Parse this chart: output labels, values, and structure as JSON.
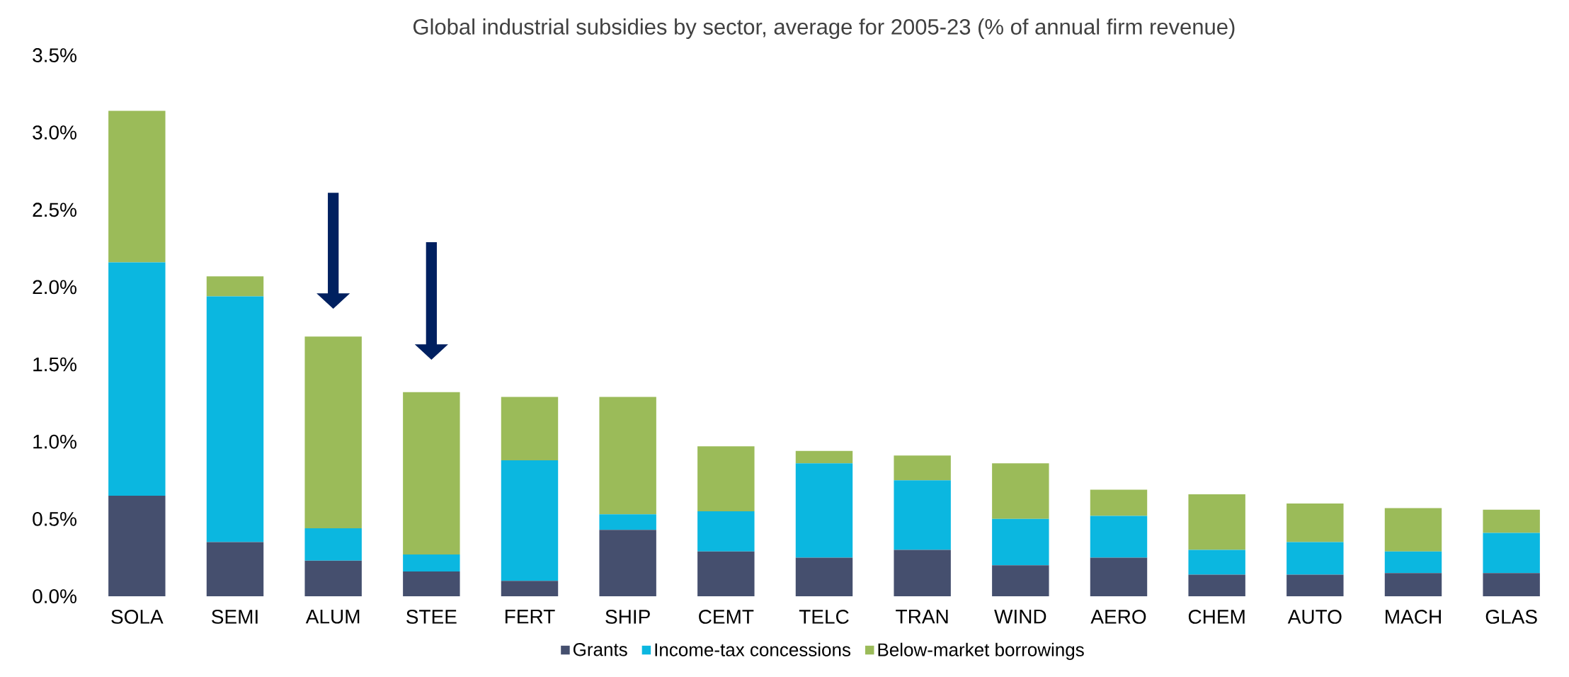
{
  "chart_data": {
    "type": "bar",
    "stacked": true,
    "title": "Global industrial subsidies by sector, average for 2005-23 (% of annual firm revenue)",
    "categories": [
      "SOLA",
      "SEMI",
      "ALUM",
      "STEE",
      "FERT",
      "SHIP",
      "CEMT",
      "TELC",
      "TRAN",
      "WIND",
      "AERO",
      "CHEM",
      "AUTO",
      "MACH",
      "GLAS"
    ],
    "series": [
      {
        "name": "Grants",
        "color": "#454f6e",
        "values": [
          0.65,
          0.35,
          0.23,
          0.16,
          0.1,
          0.43,
          0.29,
          0.25,
          0.3,
          0.2,
          0.25,
          0.14,
          0.14,
          0.15,
          0.15
        ]
      },
      {
        "name": "Income-tax concessions",
        "color": "#0bb7e0",
        "values": [
          1.51,
          1.59,
          0.21,
          0.11,
          0.78,
          0.1,
          0.26,
          0.61,
          0.45,
          0.3,
          0.27,
          0.16,
          0.21,
          0.14,
          0.26
        ]
      },
      {
        "name": "Below-market borrowings",
        "color": "#9bbb59",
        "values": [
          0.98,
          0.13,
          1.24,
          1.05,
          0.41,
          0.76,
          0.42,
          0.08,
          0.16,
          0.36,
          0.17,
          0.36,
          0.25,
          0.28,
          0.15
        ]
      }
    ],
    "ylim": [
      0,
      3.5
    ],
    "yticks": [
      {
        "value": 0,
        "label": "0.0%"
      },
      {
        "value": 0.5,
        "label": "0.5%"
      },
      {
        "value": 1.0,
        "label": "1.0%"
      },
      {
        "value": 1.5,
        "label": "1.5%"
      },
      {
        "value": 2.0,
        "label": "2.0%"
      },
      {
        "value": 2.5,
        "label": "2.5%"
      },
      {
        "value": 3.0,
        "label": "3.0%"
      },
      {
        "value": 3.5,
        "label": "3.5%"
      }
    ],
    "grid": false,
    "legend": "bottom"
  }
}
